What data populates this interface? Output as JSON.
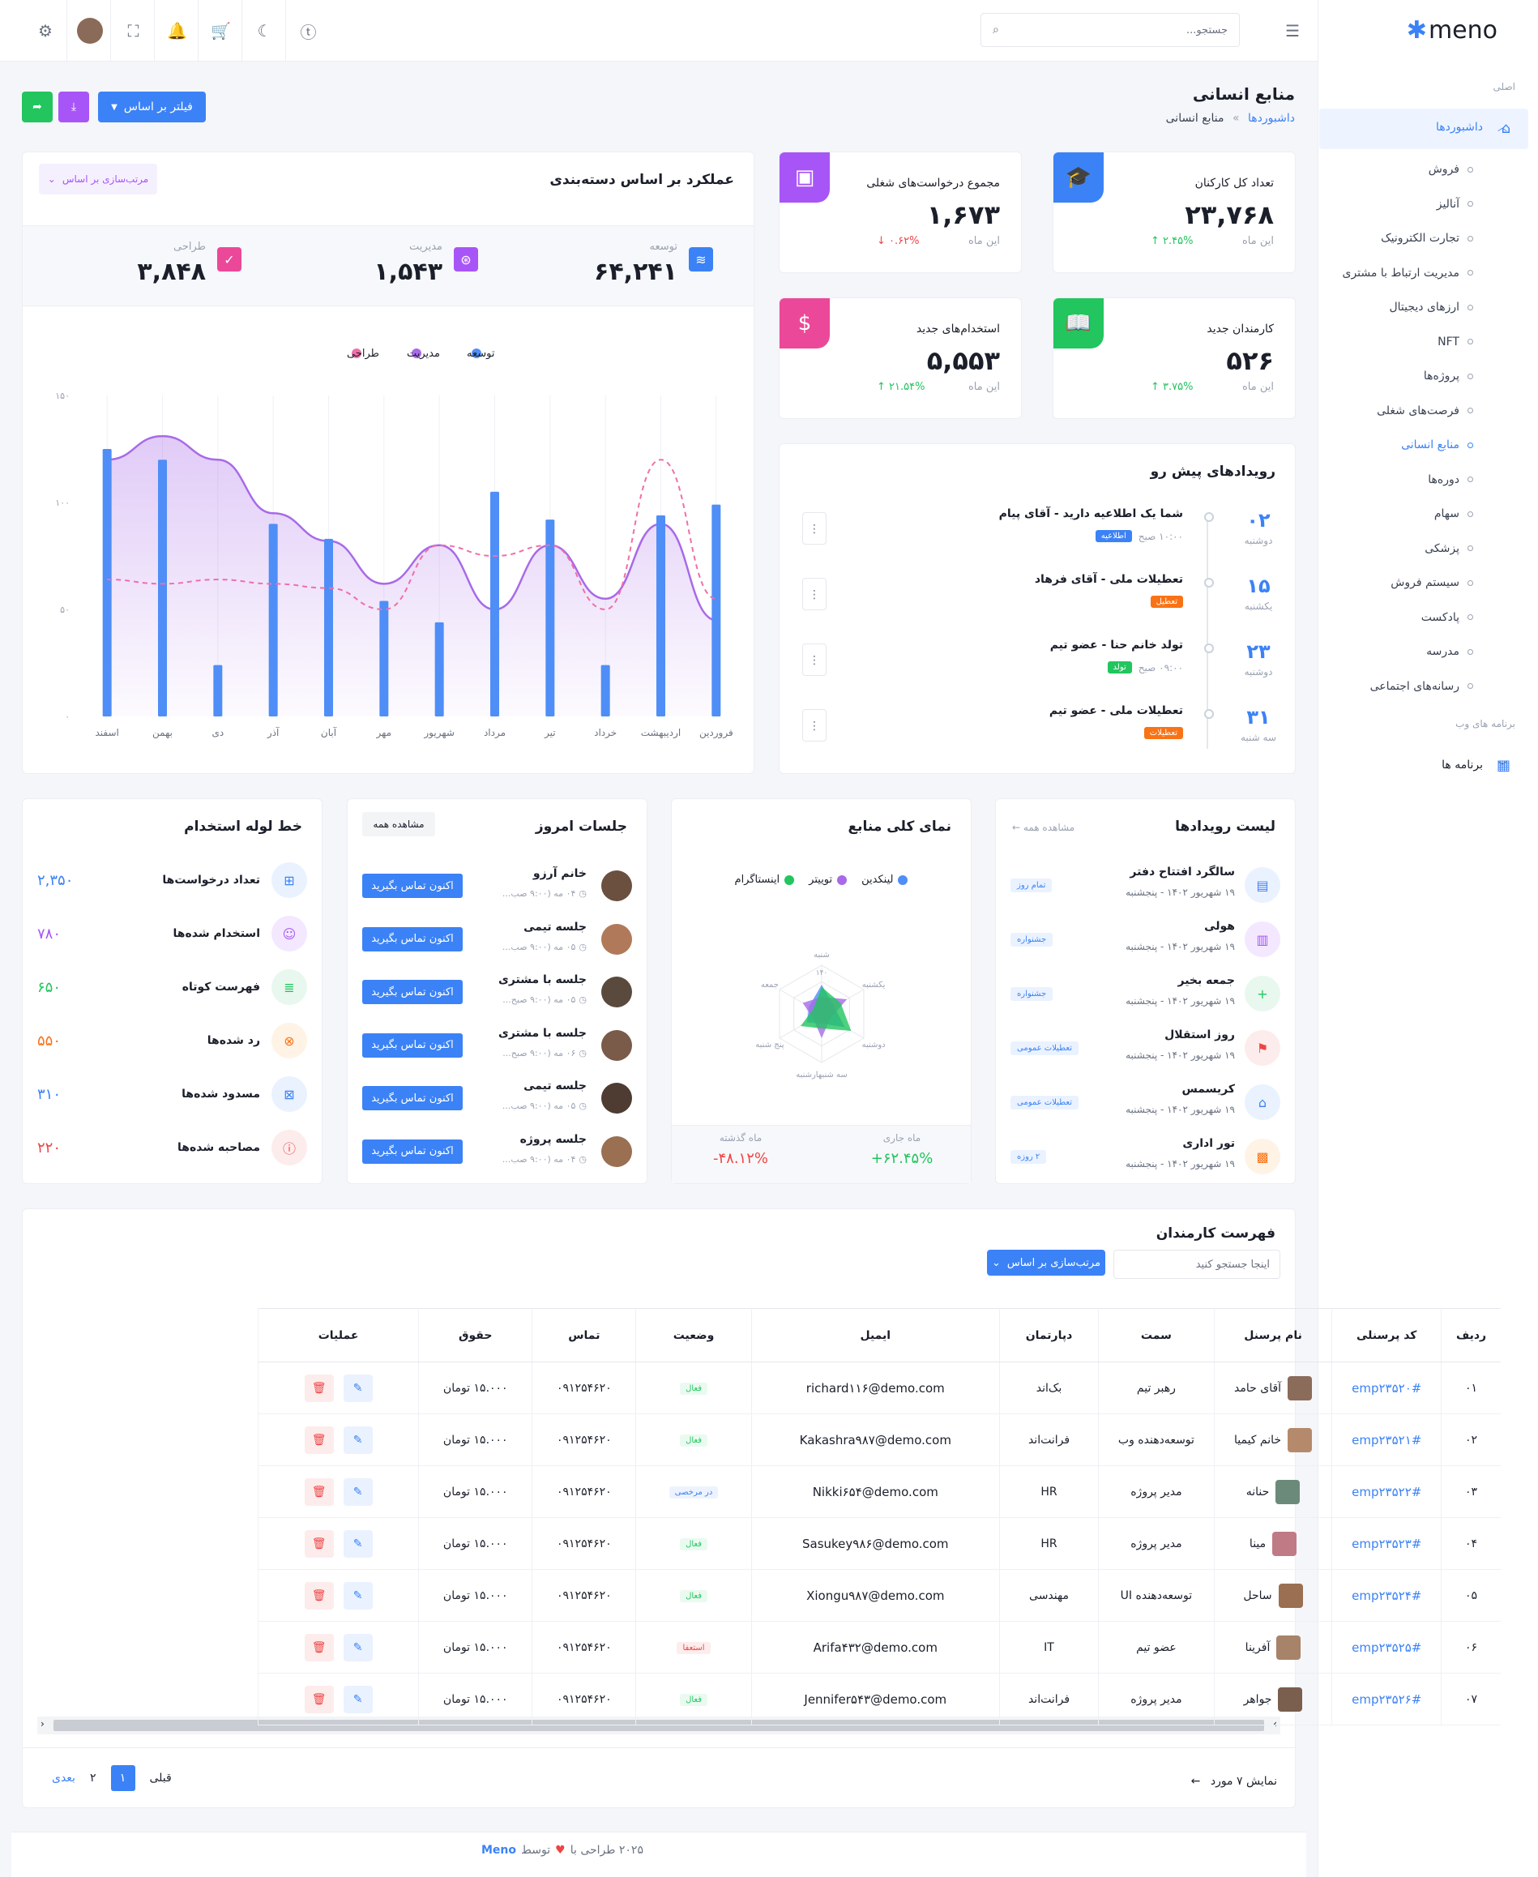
{
  "brand": {
    "name": "meno"
  },
  "search": {
    "placeholder": "جستجو..."
  },
  "sidebar": {
    "section_main": "اصلی",
    "dashboards": "داشبوردها",
    "items": [
      "فروش",
      "آنالیز",
      "تجارت الکترونیک",
      "مدیریت ارتباط با مشتری",
      "ارزهای دیجیتال",
      "NFT",
      "پروژه‌ها",
      "فرصت‌های شغلی",
      "منابع انسانی",
      "دوره‌ها",
      "سهام",
      "پزشکی",
      "سیستم فروش",
      "پادکست",
      "مدرسه",
      "رسانه‌های اجتماعی"
    ],
    "section_web": "برنامه های وب",
    "apps": "برنامه ها"
  },
  "page": {
    "title": "منابع انسانی",
    "crumb_home": "داشبوردها",
    "crumb_sep": "»",
    "crumb_current": "منابع انسانی",
    "filter_btn": "فیلتر بر اساس"
  },
  "stats": [
    {
      "title": "تعداد کل کارکنان",
      "value": "۲۳,۷۶۸",
      "sub": "این ماه",
      "pct": "۲.۴۵% ↑",
      "color": "#3b82f6",
      "pct_color": "#22c55e",
      "icon": "graduation-cap-icon"
    },
    {
      "title": "مجموع درخواست‌های شغلی",
      "value": "۱,۶۷۳",
      "sub": "این ماه",
      "pct": "۰.۶۲% ↓",
      "color": "#a855f7",
      "pct_color": "#ef4444",
      "icon": "image-frame-icon"
    },
    {
      "title": "کارمندان جدید",
      "value": "۵۲۶",
      "sub": "این ماه",
      "pct": "۳.۷۵% ↑",
      "color": "#22c55e",
      "pct_color": "#22c55e",
      "icon": "book-icon"
    },
    {
      "title": "استخدام‌های جدید",
      "value": "۵,۵۵۳",
      "sub": "این ماه",
      "pct": "۲۱.۵۴% ↑",
      "color": "#ec4899",
      "pct_color": "#22c55e",
      "icon": "dollar-icon"
    }
  ],
  "performance": {
    "title": "عملکرد بر اساس دسته‌بندی",
    "sort_label": "مرتب‌سازی بر اساس",
    "totals": [
      {
        "label": "توسعه",
        "value": "۶۴,۲۴۱",
        "color": "#3b82f6"
      },
      {
        "label": "مدیریت",
        "value": "۱,۵۴۳",
        "color": "#a855f7"
      },
      {
        "label": "طراحی",
        "value": "۳,۸۴۸",
        "color": "#ec4899"
      }
    ]
  },
  "chart_data": {
    "type": "bar",
    "categories": [
      "فروردین",
      "اردیبهشت",
      "خرداد",
      "تیر",
      "مرداد",
      "شهریور",
      "مهر",
      "آبان",
      "آذر",
      "دی",
      "بهمن",
      "اسفند"
    ],
    "y_ticks": [
      "۰",
      "۵۰",
      "۱۰۰",
      "۱۵۰"
    ],
    "ylim": [
      0,
      150
    ],
    "legend_position": "top",
    "series": [
      {
        "name": "توسعه",
        "type": "bar",
        "color": "#4f8ef7",
        "values": [
          99,
          94,
          24,
          92,
          105,
          44,
          54,
          83,
          90,
          24,
          120,
          125
        ]
      },
      {
        "name": "مدیریت",
        "type": "area",
        "color": "#a86ae8",
        "values": [
          45,
          90,
          55,
          80,
          50,
          80,
          62,
          82,
          95,
          120,
          131,
          120
        ]
      },
      {
        "name": "طراحی",
        "type": "line",
        "color": "#f06fa8",
        "values": [
          55,
          120,
          50,
          80,
          75,
          80,
          50,
          60,
          62,
          64,
          62,
          64
        ]
      }
    ]
  },
  "upcoming": {
    "title": "رویدادهای پیش رو",
    "items": [
      {
        "day": "۰۲",
        "weekday": "دوشنبه",
        "title": "شما یک اطلاعیه دارید - آقای پیام",
        "time": "۱۰:۰۰ صبح",
        "tag": "اطلاعیه",
        "tag_color": "#3b82f6"
      },
      {
        "day": "۱۵",
        "weekday": "یکشنبه",
        "title": "تعطیلات ملی - آقای فرهاد",
        "time": "",
        "tag": "تعطیل",
        "tag_color": "#f97316"
      },
      {
        "day": "۲۳",
        "weekday": "دوشنبه",
        "title": "تولد خانم حنا - عضو تیم",
        "time": "۰۹:۰۰ صبح",
        "tag": "تولد",
        "tag_color": "#22c55e"
      },
      {
        "day": "۳۱",
        "weekday": "سه شنبه",
        "title": "تعطیلات ملی - عضو تیم",
        "time": "",
        "tag": "تعطیلات",
        "tag_color": "#f97316"
      }
    ]
  },
  "events": {
    "title": "لیست رویدادها",
    "view_all": "مشاهده همه",
    "items": [
      {
        "name": "سالگرد افتتاح دفتر",
        "date": "۱۹ شهریور ۱۴۰۲ - پنجشنبه",
        "tag": "تمام روز",
        "color": "#3b82f6",
        "bg": "#eaf2ff",
        "icon": "calendar-icon"
      },
      {
        "name": "هولی",
        "date": "۱۹ شهریور ۱۴۰۲ - پنجشنبه",
        "tag": "جشنواره",
        "color": "#a855f7",
        "bg": "#f3e8ff",
        "icon": "building-icon"
      },
      {
        "name": "جمعه بخیر",
        "date": "۱۹ شهریور ۱۴۰۲ - پنجشنبه",
        "tag": "جشنواره",
        "color": "#22c55e",
        "bg": "#e8f8ef",
        "icon": "plus-icon"
      },
      {
        "name": "روز استقلال",
        "date": "۱۹ شهریور ۱۴۰۲ - پنجشنبه",
        "tag": "تعطیلات عمومی",
        "color": "#ef4444",
        "bg": "#fdecec",
        "icon": "flag-icon"
      },
      {
        "name": "کریسمس",
        "date": "۱۹ شهریور ۱۴۰۲ - پنجشنبه",
        "tag": "تعطیلات عمومی",
        "color": "#3b82f6",
        "bg": "#eaf2ff",
        "icon": "gift-icon"
      },
      {
        "name": "تور اداری",
        "date": "۱۹ شهریور ۱۴۰۲ - پنجشنبه",
        "tag": "۲ روزه",
        "color": "#f97316",
        "bg": "#fff3e6",
        "icon": "briefcase-icon"
      }
    ]
  },
  "sources": {
    "title": "نمای کلی منابع",
    "legend": [
      {
        "name": "لینکدین",
        "color": "#4f8ef7"
      },
      {
        "name": "توییتر",
        "color": "#a86ae8"
      },
      {
        "name": "اینستاگرام",
        "color": "#22c55e"
      }
    ],
    "radar_labels": [
      "شنبه",
      "یکشنبه",
      "دوشنبه",
      "سه شنبهارشنبه",
      "پنج شنبه",
      "جمعه"
    ],
    "radar_tick": "۱۴۰",
    "current_label": "ماه جاری",
    "current_value": "۶۲.۴۵%+",
    "prev_label": "ماه گذشته",
    "prev_value": "۴۸.۱۲%-"
  },
  "meetings": {
    "title": "جلسات امروز",
    "view_all": "مشاهده همه",
    "button_label": "اکنون تماس بگیرید",
    "items": [
      {
        "name": "خانم آرزو",
        "time": "۰۴ مه (۹:۰۰ صب..."
      },
      {
        "name": "جلسه تیمی",
        "time": "۰۵ مه (۹:۰۰ صب..."
      },
      {
        "name": "جلسه با مشتری",
        "time": "۰۵ مه (۹:۰۰ صبح..."
      },
      {
        "name": "جلسه با مشتری",
        "time": "۰۶ مه (۹:۰۰ صبح..."
      },
      {
        "name": "جلسه تیمی",
        "time": "۰۵ مه (۹:۰۰ صب..."
      },
      {
        "name": "جلسه پروژه",
        "time": "۰۴ مه (۹:۰۰ صب..."
      }
    ]
  },
  "pipeline": {
    "title": "خط لوله استخدام",
    "items": [
      {
        "label": "تعداد درخواست‌ها",
        "value": "۲,۳۵۰",
        "color": "#3b82f6",
        "bg": "#eaf2ff",
        "icon": "grid-icon"
      },
      {
        "label": "استخدام شده‌ها",
        "value": "۷۸۰",
        "color": "#a855f7",
        "bg": "#f3e8ff",
        "icon": "user-check-icon"
      },
      {
        "label": "فهرست کوتاه",
        "value": "۶۵۰",
        "color": "#22c55e",
        "bg": "#e8f8ef",
        "icon": "list-icon"
      },
      {
        "label": "رد شده‌ها",
        "value": "۵۵۰",
        "color": "#f97316",
        "bg": "#fff3e6",
        "icon": "x-circle-icon"
      },
      {
        "label": "مسدود شده‌ها",
        "value": "۳۱۰",
        "color": "#3b82f6",
        "bg": "#eaf2ff",
        "icon": "file-x-icon"
      },
      {
        "label": "مصاحبه شده‌ها",
        "value": "۲۲۰",
        "color": "#ef4444",
        "bg": "#fdecec",
        "icon": "alert-icon"
      }
    ]
  },
  "employees": {
    "title": "فهرست کارمندان",
    "search_placeholder": "اینجا جستجو کنید",
    "sort_label": "مرتب‌سازی بر اساس",
    "columns": [
      "ردیف",
      "کد پرسنلی",
      "نام پرسنل",
      "سمت",
      "دپارتمان",
      "ایمیل",
      "وضعیت",
      "تماس",
      "حقوق",
      "عملیات"
    ],
    "rows": [
      {
        "idx": "۰۱",
        "code": "#emp۲۳۵۲۰",
        "name": "آقای حامد",
        "role": "رهبر تیم",
        "dept": "بک‌اند",
        "email": "richard۱۱۶@demo.com",
        "status": "فعال",
        "phone": "۰۹۱۲۵۴۶۲۰",
        "salary": "۱۵.۰۰۰ تومان",
        "av": "#8b6b5a"
      },
      {
        "idx": "۰۲",
        "code": "#emp۲۳۵۲۱",
        "name": "خانم کیمیا",
        "role": "توسعه‌دهنده وب",
        "dept": "فرانت‌اند",
        "email": "Kakashra۹۸۷@demo.com",
        "status": "فعال",
        "phone": "۰۹۱۲۵۴۶۲۰",
        "salary": "۱۵.۰۰۰ تومان",
        "av": "#b58a6c"
      },
      {
        "idx": "۰۳",
        "code": "#emp۲۳۵۲۲",
        "name": "حنانه",
        "role": "مدیر پروژه",
        "dept": "HR",
        "email": "Nikki۶۵۴@demo.com",
        "status": "در مرخصی",
        "phone": "۰۹۱۲۵۴۶۲۰",
        "salary": "۱۵.۰۰۰ تومان",
        "av": "#6c8a7a"
      },
      {
        "idx": "۰۴",
        "code": "#emp۲۳۵۲۳",
        "name": "مینا",
        "role": "مدیر پروژه",
        "dept": "HR",
        "email": "Sasukey۹۸۶@demo.com",
        "status": "فعال",
        "phone": "۰۹۱۲۵۴۶۲۰",
        "salary": "۱۵.۰۰۰ تومان",
        "av": "#c07a86"
      },
      {
        "idx": "۰۵",
        "code": "#emp۲۳۵۲۴",
        "name": "ساحل",
        "role": "توسعه‌دهنده UI",
        "dept": "مهندسی",
        "email": "Xiongu۹۸۷@demo.com",
        "status": "فعال",
        "phone": "۰۹۱۲۵۴۶۲۰",
        "salary": "۱۵.۰۰۰ تومان",
        "av": "#9a6f52"
      },
      {
        "idx": "۰۶",
        "code": "#emp۲۳۵۲۵",
        "name": "آفرینا",
        "role": "عضو تیم",
        "dept": "IT",
        "email": "Arifa۴۳۲@demo.com",
        "status": "استعفا",
        "phone": "۰۹۱۲۵۴۶۲۰",
        "salary": "۱۵.۰۰۰ تومان",
        "av": "#a7836a"
      },
      {
        "idx": "۰۷",
        "code": "#emp۲۳۵۲۶",
        "name": "جواهر",
        "role": "مدیر پروژه",
        "dept": "فرانت‌اند",
        "email": "Jennifer۵۴۳@demo.com",
        "status": "فعال",
        "phone": "۰۹۱۲۵۴۶۲۰",
        "salary": "۱۵.۰۰۰ تومان",
        "av": "#7a5e4e"
      }
    ],
    "status_colors": {
      "فعال": "#22c55e",
      "در مرخصی": "#3b82f6",
      "استعفا": "#ef4444"
    },
    "showing": "نمایش ۷ مورد",
    "prev": "قبلی",
    "next": "بعدی",
    "page1": "۱",
    "page2": "۲"
  },
  "footer": {
    "text": "۲۰۲۵ طراحی با",
    "by": "توسط",
    "brand": "Meno"
  }
}
